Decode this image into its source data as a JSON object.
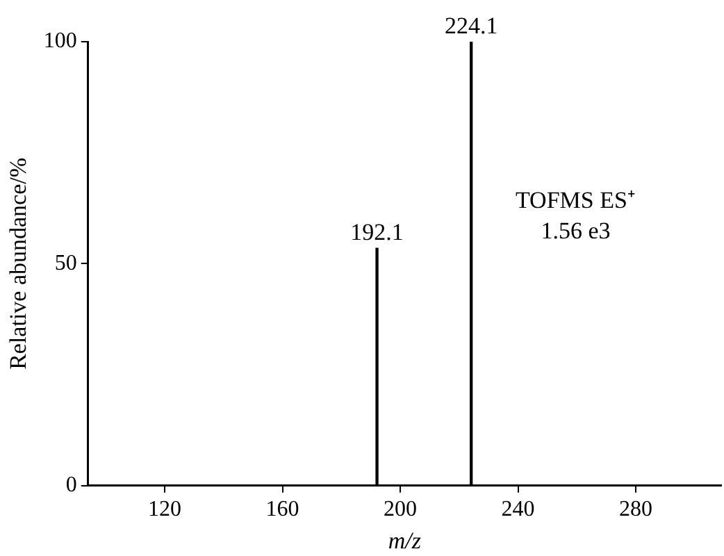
{
  "chart_data": {
    "type": "bar",
    "xlabel": "m/z",
    "ylabel": "Relative abundance/%",
    "x": [
      192.1,
      224.1
    ],
    "values": [
      53.5,
      100
    ],
    "color": "#000000",
    "xlim": [
      94,
      309
    ],
    "xticks": [
      120,
      160,
      200,
      240,
      280
    ],
    "ylim": [
      0,
      100
    ],
    "yticks": [
      0,
      50,
      100
    ],
    "annotations": [
      {
        "text": "192.1",
        "x": 192.1,
        "y": 53.5
      },
      {
        "text": "224.1",
        "x": 224.1,
        "y": 100
      },
      "TOFMS ES⁺",
      "1.56 e3"
    ],
    "grid": false,
    "legend": false
  }
}
